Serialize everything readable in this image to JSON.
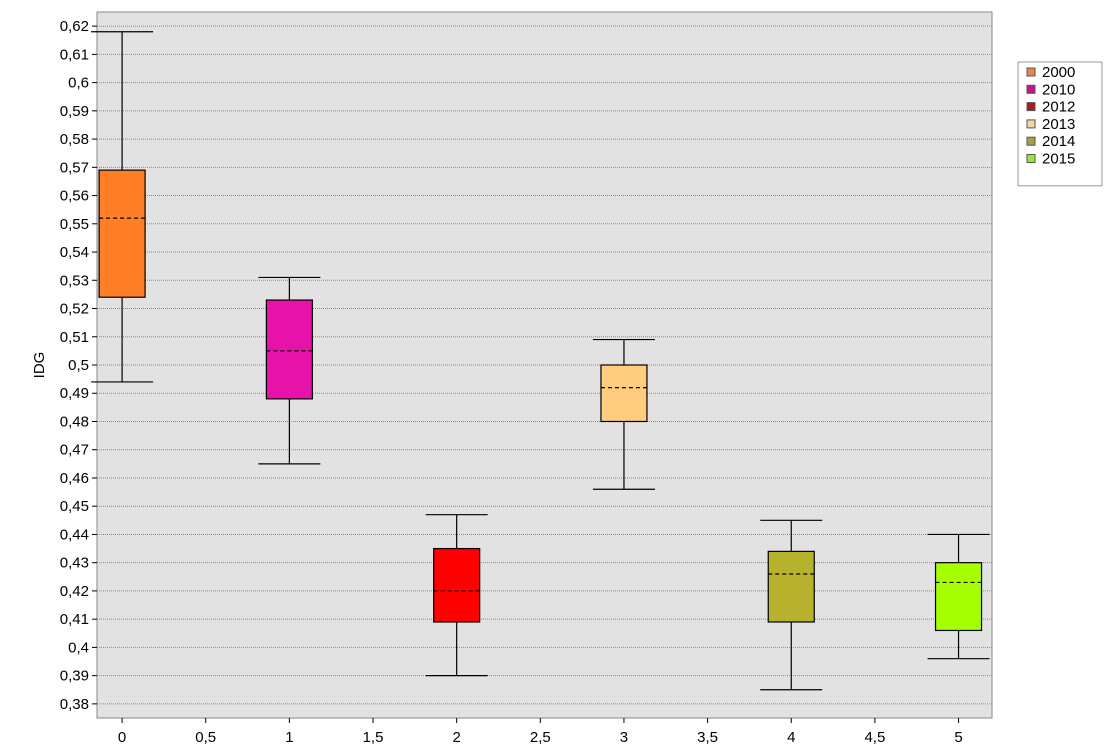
{
  "chart_data": {
    "type": "box",
    "title": "",
    "xlabel": "",
    "ylabel": "IDG",
    "xlim": [
      -0.15,
      5.2
    ],
    "ylim": [
      0.375,
      0.625
    ],
    "grid": true,
    "legend_position": "right",
    "x_ticks": [
      {
        "value": 0,
        "label": "0"
      },
      {
        "value": 0.5,
        "label": "0,5"
      },
      {
        "value": 1,
        "label": "1"
      },
      {
        "value": 1.5,
        "label": "1,5"
      },
      {
        "value": 2,
        "label": "2"
      },
      {
        "value": 2.5,
        "label": "2,5"
      },
      {
        "value": 3,
        "label": "3"
      },
      {
        "value": 3.5,
        "label": "3,5"
      },
      {
        "value": 4,
        "label": "4"
      },
      {
        "value": 4.5,
        "label": "4,5"
      },
      {
        "value": 5,
        "label": "5"
      }
    ],
    "y_ticks": [
      {
        "value": 0.38,
        "label": "0,38"
      },
      {
        "value": 0.39,
        "label": "0,39"
      },
      {
        "value": 0.4,
        "label": "0,4"
      },
      {
        "value": 0.41,
        "label": "0,41"
      },
      {
        "value": 0.42,
        "label": "0,42"
      },
      {
        "value": 0.43,
        "label": "0,43"
      },
      {
        "value": 0.44,
        "label": "0,44"
      },
      {
        "value": 0.45,
        "label": "0,45"
      },
      {
        "value": 0.46,
        "label": "0,46"
      },
      {
        "value": 0.47,
        "label": "0,47"
      },
      {
        "value": 0.48,
        "label": "0,48"
      },
      {
        "value": 0.49,
        "label": "0,49"
      },
      {
        "value": 0.5,
        "label": "0,5"
      },
      {
        "value": 0.51,
        "label": "0,51"
      },
      {
        "value": 0.52,
        "label": "0,52"
      },
      {
        "value": 0.53,
        "label": "0,53"
      },
      {
        "value": 0.54,
        "label": "0,54"
      },
      {
        "value": 0.55,
        "label": "0,55"
      },
      {
        "value": 0.56,
        "label": "0,56"
      },
      {
        "value": 0.57,
        "label": "0,57"
      },
      {
        "value": 0.58,
        "label": "0,58"
      },
      {
        "value": 0.59,
        "label": "0,59"
      },
      {
        "value": 0.6,
        "label": "0,6"
      },
      {
        "value": 0.61,
        "label": "0,61"
      },
      {
        "value": 0.62,
        "label": "0,62"
      }
    ],
    "series": [
      {
        "name": "2000",
        "x": 0,
        "color": "#ff7f27",
        "min": 0.494,
        "q1": 0.524,
        "median": 0.552,
        "q3": 0.569,
        "max": 0.618
      },
      {
        "name": "2010",
        "x": 1,
        "color": "#e612a9",
        "min": 0.465,
        "q1": 0.488,
        "median": 0.505,
        "q3": 0.523,
        "max": 0.531
      },
      {
        "name": "2012",
        "x": 2,
        "color": "#ff0000",
        "min": 0.39,
        "q1": 0.409,
        "median": 0.42,
        "q3": 0.435,
        "max": 0.447
      },
      {
        "name": "2013",
        "x": 3,
        "color": "#ffcc80",
        "min": 0.456,
        "q1": 0.48,
        "median": 0.492,
        "q3": 0.5,
        "max": 0.509
      },
      {
        "name": "2014",
        "x": 4,
        "color": "#b7b22e",
        "min": 0.385,
        "q1": 0.409,
        "median": 0.426,
        "q3": 0.434,
        "max": 0.445
      },
      {
        "name": "2015",
        "x": 5,
        "color": "#a6ff00",
        "min": 0.396,
        "q1": 0.406,
        "median": 0.423,
        "q3": 0.43,
        "max": 0.44
      }
    ],
    "legend_swatch_colors": [
      "#e8844e",
      "#c0178e",
      "#a51e1e",
      "#f4d8a4",
      "#a4a14a",
      "#9ae63c"
    ]
  }
}
